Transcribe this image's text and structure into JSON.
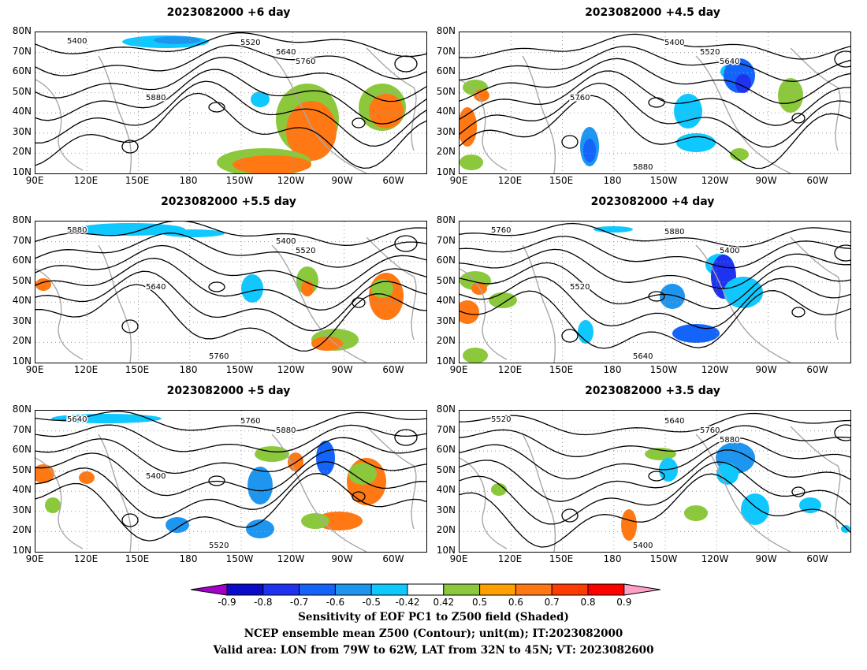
{
  "panels": [
    {
      "title": "2023082000 +6 day"
    },
    {
      "title": "2023082000 +4.5 day"
    },
    {
      "title": "2023082000 +5.5 day"
    },
    {
      "title": "2023082000 +4 day"
    },
    {
      "title": "2023082000 +5 day"
    },
    {
      "title": "2023082000 +3.5 day"
    }
  ],
  "axes": {
    "lat_labels": [
      "80N",
      "70N",
      "60N",
      "50N",
      "40N",
      "30N",
      "20N",
      "10N"
    ],
    "lon_labels": [
      "90E",
      "120E",
      "150E",
      "180",
      "150W",
      "120W",
      "90W",
      "60W"
    ]
  },
  "contour_levels": [
    "5400",
    "5520",
    "5640",
    "5760",
    "5880"
  ],
  "colorbar": {
    "ticks": [
      "-0.9",
      "-0.8",
      "-0.7",
      "-0.6",
      "-0.5",
      "-0.42",
      "0.42",
      "0.5",
      "0.6",
      "0.7",
      "0.8",
      "0.9"
    ],
    "colors": [
      "#a000c8",
      "#0a0ac8",
      "#1e32f0",
      "#1464fa",
      "#1e96f0",
      "#0fc8ff",
      "#ffffff",
      "#8cc83c",
      "#ffa000",
      "#ff7814",
      "#ff3c00",
      "#ff0000",
      "#ffa0c8"
    ]
  },
  "caption": {
    "line1": "Sensitivity of EOF PC1 to Z500 field (Shaded)",
    "line2": "NCEP ensemble mean Z500 (Contour); unit(m); IT:2023082000",
    "line3": "Valid area: LON from 79W to 62W, LAT from 32N to 45N; VT: 2023082600"
  }
}
